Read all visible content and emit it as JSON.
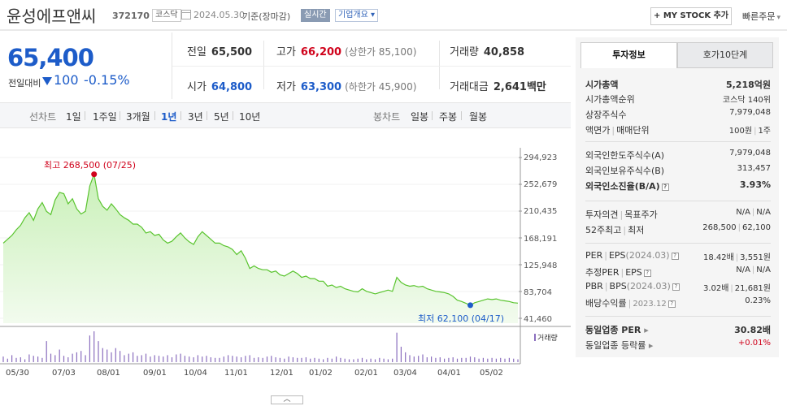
{
  "header": {
    "name": "윤성에프앤씨",
    "code": "372170",
    "market": "코스닥",
    "date": "2024.05.30",
    "basis": "기준(장마감)",
    "realtime": "실시간",
    "company_info": "기업개요 ▾",
    "mystock_button": "+ MY STOCK 추가",
    "quick_order": "빠른주문"
  },
  "price": {
    "current": "65,400",
    "change_label": "전일대비",
    "change": "100",
    "change_pct": "-0.15%"
  },
  "quote": {
    "prev_label": "전일",
    "prev": "65,500",
    "high_label": "고가",
    "high": "66,200",
    "upper_limit": "(상한가 85,100)",
    "volume_label": "거래량",
    "volume": "40,858",
    "open_label": "시가",
    "open": "64,800",
    "low_label": "저가",
    "low": "63,300",
    "lower_limit": "(하한가 45,900)",
    "amount_label": "거래대금",
    "amount": "2,641",
    "amount_unit": "백만"
  },
  "period_bar": {
    "line_chart": "선차트",
    "periods": [
      "1일",
      "1주일",
      "3개월",
      "1년",
      "3년",
      "5년",
      "10년"
    ],
    "active_period": "1년",
    "candle_chart": "봉차트",
    "candles": [
      "일봉",
      "주봉",
      "월봉"
    ]
  },
  "chart_data": {
    "type": "area",
    "y_ticks": [
      "294,923",
      "252,679",
      "210,435",
      "168,191",
      "125,948",
      "83,704",
      "41,460"
    ],
    "ylim": [
      41460,
      294923
    ],
    "x_ticks": [
      "05/30",
      "07/03",
      "08/01",
      "09/01",
      "10/04",
      "11/01",
      "12/01",
      "01/02",
      "02/01",
      "03/04",
      "04/01",
      "05/02"
    ],
    "high_label": "최고 268,500 (07/25)",
    "low_label": "최저 62,100 (04/17)",
    "volume_label": "거래량",
    "series": [
      {
        "values": [
          160000,
          166000,
          172000,
          181000,
          188000,
          200000,
          208000,
          196000,
          214000,
          224000,
          210000,
          205000,
          228000,
          240000,
          238000,
          222000,
          230000,
          214000,
          206000,
          210000,
          250000,
          268500,
          230000,
          218000,
          212000,
          222000,
          214000,
          205000,
          200000,
          196000,
          190000,
          190000,
          185000,
          176000,
          178000,
          172000,
          174000,
          165000,
          160000,
          163000,
          170000,
          176000,
          168000,
          162000,
          158000,
          170000,
          178000,
          172000,
          166000,
          160000,
          160000,
          156000,
          154000,
          150000,
          142000,
          148000,
          136000,
          120000,
          124000,
          120000,
          118000,
          118000,
          114000,
          116000,
          110000,
          108000,
          112000,
          116000,
          112000,
          106000,
          108000,
          104000,
          104000,
          100000,
          100000,
          92000,
          94000,
          90000,
          92000,
          88000,
          86000,
          84000,
          83000,
          88000,
          84000,
          82000,
          80000,
          82000,
          84000,
          86000,
          84000,
          106000,
          98000,
          94000,
          92000,
          93000,
          91000,
          92000,
          88000,
          86000,
          84000,
          83000,
          82000,
          80000,
          76000,
          70000,
          68000,
          65000,
          62100,
          66000,
          68000,
          70000,
          72000,
          71000,
          72000,
          70000,
          69000,
          68000,
          66000,
          65400
        ]
      },
      {
        "name": "거래량",
        "values": [
          8,
          5,
          10,
          6,
          7,
          4,
          11,
          9,
          8,
          6,
          30,
          12,
          10,
          18,
          9,
          7,
          12,
          14,
          16,
          10,
          38,
          44,
          30,
          20,
          18,
          14,
          20,
          16,
          10,
          12,
          14,
          9,
          10,
          12,
          8,
          10,
          9,
          8,
          10,
          7,
          11,
          12,
          9,
          8,
          7,
          10,
          8,
          9,
          7,
          6,
          6,
          8,
          10,
          9,
          8,
          7,
          9,
          10,
          6,
          7,
          6,
          8,
          9,
          7,
          6,
          5,
          8,
          7,
          6,
          6,
          7,
          5,
          6,
          5,
          4,
          6,
          5,
          8,
          6,
          5,
          4,
          4,
          5,
          6,
          4,
          5,
          4,
          6,
          5,
          4,
          5,
          42,
          22,
          14,
          10,
          8,
          9,
          11,
          7,
          8,
          6,
          7,
          5,
          6,
          7,
          5,
          6,
          6,
          8,
          7,
          5,
          6,
          5,
          6,
          5,
          6,
          5,
          6,
          5,
          4
        ]
      }
    ]
  },
  "side": {
    "tab_active": "투자정보",
    "tab_inactive": "호가10단계",
    "market_cap_label": "시가총액",
    "market_cap": "5,218억원",
    "rank_label": "시가총액순위",
    "rank": "코스닥 140위",
    "shares_label": "상장주식수",
    "shares": "7,979,048",
    "par_label": "액면가",
    "trade_unit_label": "매매단위",
    "par": "100원",
    "trade_unit": "1주",
    "foreign_limit_label": "외국인한도주식수(A)",
    "foreign_limit": "7,979,048",
    "foreign_hold_label": "외국인보유주식수(B)",
    "foreign_hold": "313,457",
    "foreign_ratio_label": "외국인소진율(B/A)",
    "foreign_ratio": "3.93%",
    "opinion_label": "투자의견",
    "target_label": "목표주가",
    "opinion": "N/A",
    "target": "N/A",
    "week52_label": "52주최고",
    "week52_low_label": "최저",
    "week52_high": "268,500",
    "week52_low": "62,100",
    "per_label": "PER",
    "eps_label": "EPS",
    "eps_period": "(2024.03)",
    "per": "18.42배",
    "eps": "3,551원",
    "est_per_label": "추정PER",
    "est_eps_label": "EPS",
    "est_per": "N/A",
    "est_eps": "N/A",
    "pbr_label": "PBR",
    "bps_label": "BPS",
    "bps_period": "(2024.03)",
    "pbr": "3.02배",
    "bps": "21,681원",
    "div_label": "배당수익률",
    "div_period": "2023.12",
    "div": "0.23%",
    "sector_per_label": "동일업종 PER",
    "sector_per": "30.82배",
    "sector_chg_label": "동일업종 등락률",
    "sector_chg": "+0.01%"
  }
}
